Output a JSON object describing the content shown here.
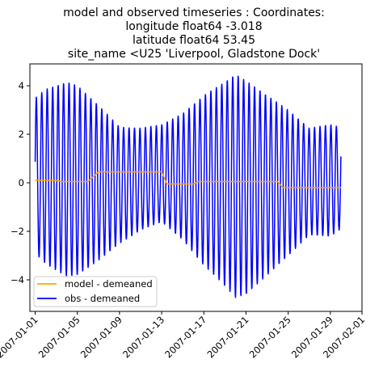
{
  "chart_data": {
    "type": "line",
    "title_lines": [
      "model and observed timeseries : Coordinates:",
      "longitude  float64 -3.018",
      "latitude   float64 53.45",
      "site_name  <U25 'Liverpool, Gladstone Dock'"
    ],
    "xlabel": "",
    "ylabel": "",
    "x_range": [
      "2007-01-01",
      "2007-01-30"
    ],
    "xlim": [
      "2006-12-31T12:00",
      "2007-02-01"
    ],
    "ylim": [
      -5.3,
      4.9
    ],
    "x_ticks": [
      "2007-01-01",
      "2007-01-05",
      "2007-01-09",
      "2007-01-13",
      "2007-01-17",
      "2007-01-21",
      "2007-01-25",
      "2007-01-29",
      "2007-02-01"
    ],
    "y_ticks": [
      -4,
      -2,
      0,
      2,
      4
    ],
    "grid": false,
    "legend_position": "lower-left",
    "series": [
      {
        "name": "model - demeaned",
        "color": "#ffa500",
        "points": [
          [
            "2007-01-01",
            0.1
          ],
          [
            "2007-01-03",
            0.1
          ],
          [
            "2007-01-03T12:00",
            0.05
          ],
          [
            "2007-01-06",
            0.05
          ],
          [
            "2007-01-07",
            0.45
          ],
          [
            "2007-01-13",
            0.45
          ],
          [
            "2007-01-13T12:00",
            -0.05
          ],
          [
            "2007-01-16",
            -0.05
          ],
          [
            "2007-01-16T12:00",
            0.05
          ],
          [
            "2007-01-24",
            0.05
          ],
          [
            "2007-01-24T12:00",
            -0.2
          ],
          [
            "2007-01-30",
            -0.2
          ]
        ]
      },
      {
        "name": "obs - demeaned",
        "color": "#0000ff",
        "tide_period_days": 0.5175,
        "phase_start": 0.25,
        "amplitude_envelope": [
          [
            "2007-01-01",
            3.2
          ],
          [
            "2007-01-02",
            3.6
          ],
          [
            "2007-01-04",
            4.0
          ],
          [
            "2007-01-05",
            3.9
          ],
          [
            "2007-01-07",
            3.2
          ],
          [
            "2007-01-09",
            2.4
          ],
          [
            "2007-01-11",
            2.1
          ],
          [
            "2007-01-13",
            2.0
          ],
          [
            "2007-01-15",
            2.6
          ],
          [
            "2007-01-17",
            3.5
          ],
          [
            "2007-01-19",
            4.2
          ],
          [
            "2007-01-20",
            4.6
          ],
          [
            "2007-01-21",
            4.4
          ],
          [
            "2007-01-23",
            3.7
          ],
          [
            "2007-01-25",
            3.0
          ],
          [
            "2007-01-27",
            2.2
          ],
          [
            "2007-01-29",
            2.3
          ],
          [
            "2007-01-30",
            2.1
          ]
        ],
        "high_water_offset": [
          [
            "2007-01-01",
            0.3
          ],
          [
            "2007-01-05",
            0.1
          ],
          [
            "2007-01-09",
            -0.1
          ],
          [
            "2007-01-13",
            0.4
          ],
          [
            "2007-01-17",
            0.1
          ],
          [
            "2007-01-21",
            -0.2
          ],
          [
            "2007-01-25",
            0.0
          ],
          [
            "2007-01-29",
            0.1
          ],
          [
            "2007-01-30",
            0.2
          ]
        ]
      }
    ]
  },
  "legend": {
    "entries": [
      {
        "label": "model - demeaned",
        "color": "#ffa500"
      },
      {
        "label": "obs - demeaned",
        "color": "#0000ff"
      }
    ]
  }
}
